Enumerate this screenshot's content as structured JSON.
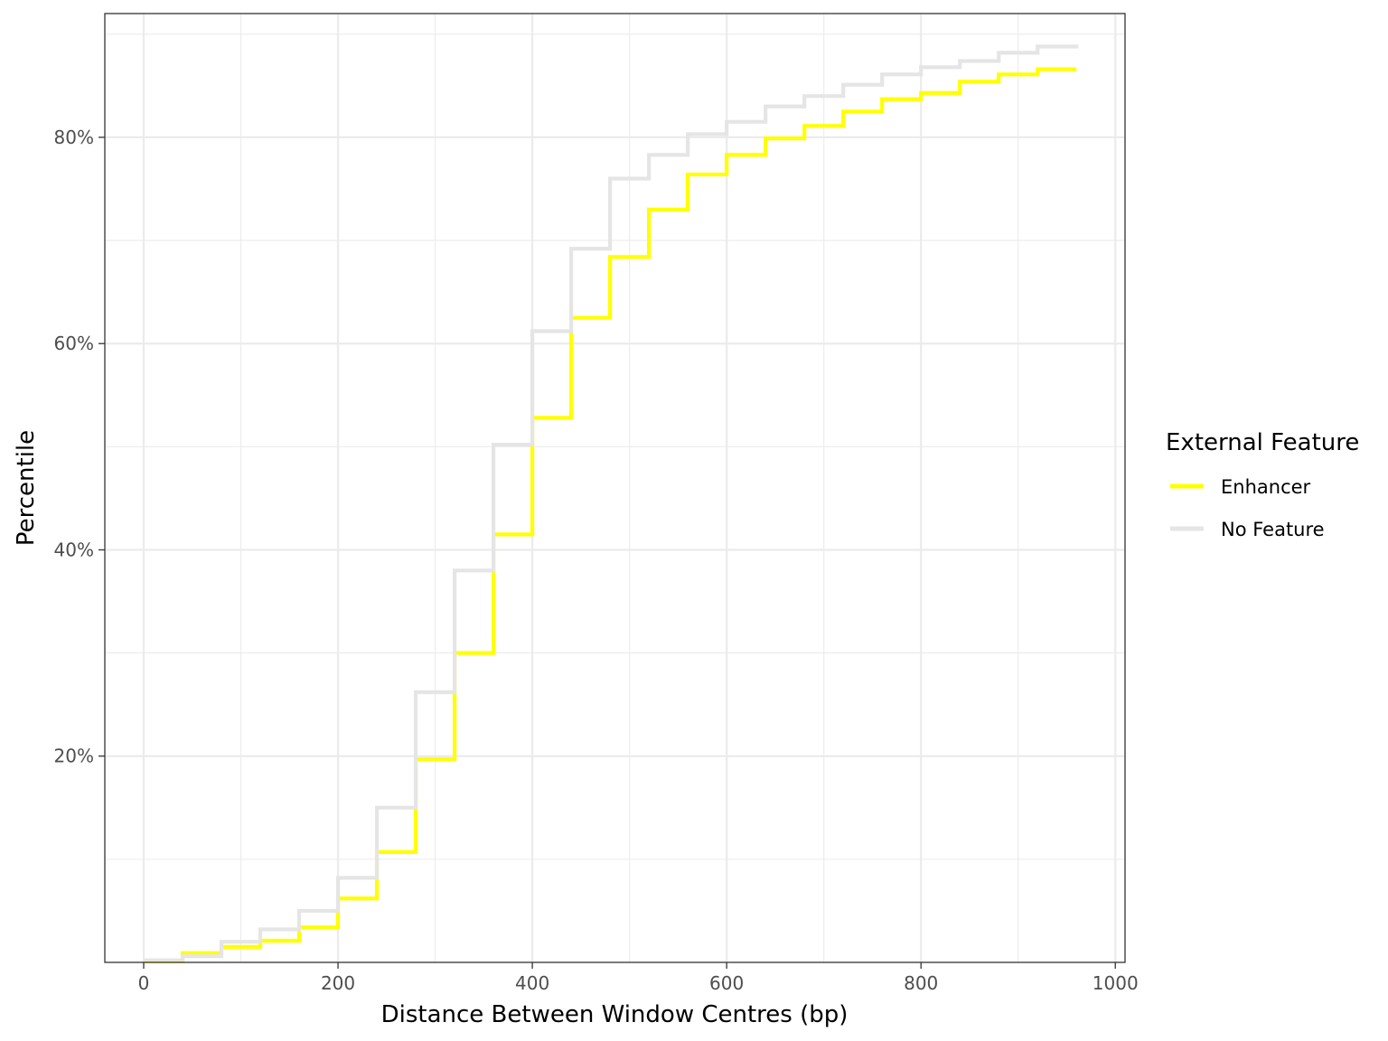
{
  "chart_data": {
    "type": "line",
    "step": true,
    "title": "",
    "xlabel": "Distance Between Window Centres (bp)",
    "ylabel": "Percentile",
    "xlim": [
      -40,
      1010
    ],
    "ylim": [
      0,
      92
    ],
    "x_ticks": [
      0,
      200,
      400,
      600,
      800,
      1000
    ],
    "x_tick_labels": [
      "0",
      "200",
      "400",
      "600",
      "800",
      "1000"
    ],
    "y_ticks": [
      20,
      40,
      60,
      80
    ],
    "y_tick_labels": [
      "20%",
      "40%",
      "60%",
      "80%"
    ],
    "grid": true,
    "legend": {
      "title": "External Feature",
      "position": "right"
    },
    "x": [
      0,
      40,
      80,
      120,
      160,
      200,
      240,
      280,
      320,
      360,
      400,
      440,
      480,
      520,
      560,
      600,
      640,
      680,
      720,
      760,
      800,
      840,
      880,
      920,
      960
    ],
    "series": [
      {
        "name": "Enhancer",
        "color": "#ffff00",
        "values": [
          0.1,
          0.9,
          1.5,
          2.1,
          3.4,
          6.2,
          10.7,
          19.7,
          30.0,
          41.5,
          52.8,
          62.5,
          68.4,
          73.0,
          76.4,
          78.3,
          79.9,
          81.1,
          82.5,
          83.7,
          84.3,
          85.4,
          86.1,
          86.6,
          86.6
        ]
      },
      {
        "name": "No Feature",
        "color": "#e5e5e5",
        "values": [
          0.2,
          0.6,
          2.0,
          3.2,
          5.0,
          8.2,
          15.0,
          26.2,
          38.0,
          50.2,
          61.2,
          69.2,
          76.0,
          78.3,
          80.3,
          81.5,
          83.0,
          84.0,
          85.1,
          86.1,
          86.8,
          87.4,
          88.2,
          88.8,
          89.0
        ]
      }
    ]
  }
}
